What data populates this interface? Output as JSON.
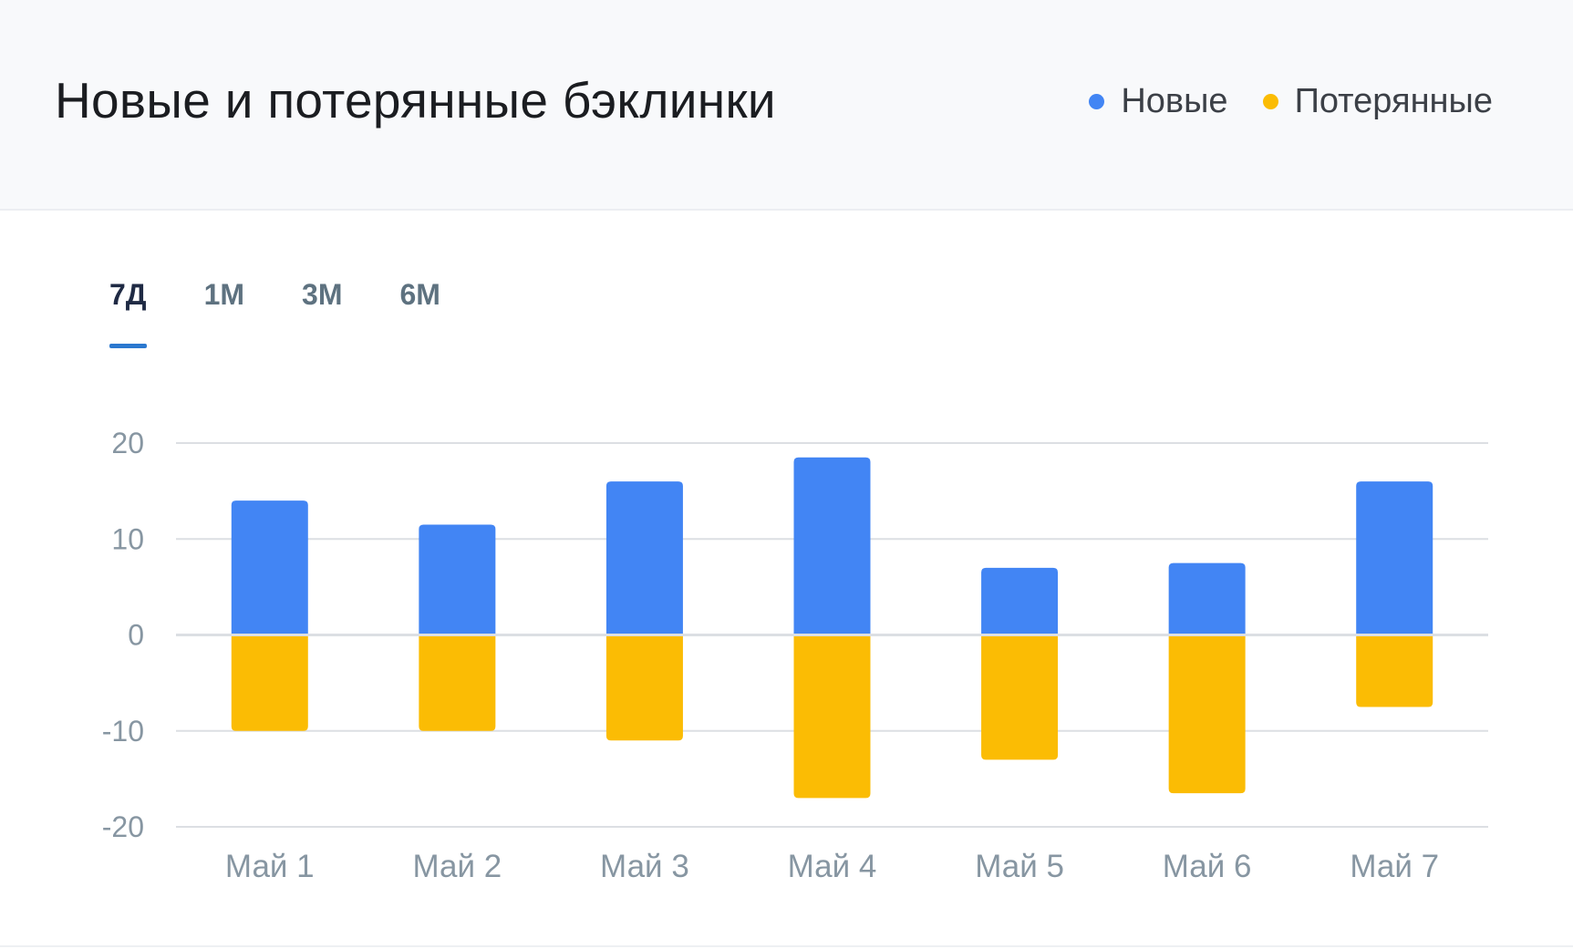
{
  "chart_data": {
    "type": "bar",
    "title": "Новые и потерянные бэклинки",
    "categories": [
      "Май 1",
      "Май 2",
      "Май 3",
      "Май 4",
      "Май 5",
      "Май 6",
      "Май 7"
    ],
    "series": [
      {
        "name": "Новые",
        "color": "#4285f4",
        "values": [
          14,
          11.5,
          16,
          18.5,
          7,
          7.5,
          16
        ]
      },
      {
        "name": "Потерянные",
        "color": "#fbbc04",
        "values": [
          -10,
          -10,
          -11,
          -17,
          -13,
          -16.5,
          -7.5
        ]
      }
    ],
    "ylim": [
      -20,
      20
    ],
    "yticks": [
      "20",
      "10",
      "0",
      "-10",
      "-20"
    ],
    "grid": true,
    "legend_position": "top-right"
  },
  "tabs": [
    {
      "label": "7Д",
      "active": true
    },
    {
      "label": "1М",
      "active": false
    },
    {
      "label": "3М",
      "active": false
    },
    {
      "label": "6М",
      "active": false
    }
  ],
  "colors": {
    "gridline": "#dcdfe3",
    "accent": "#2b78cf"
  }
}
